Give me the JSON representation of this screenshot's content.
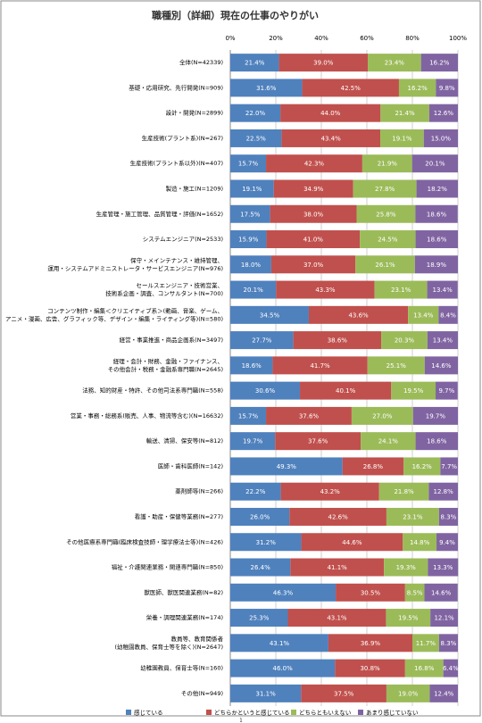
{
  "chart_data": {
    "type": "stacked-bar-horizontal",
    "title": "職種別（詳細）現在の仕事のやりがい",
    "categories": [
      "全体(N=42339)",
      "基礎・応用研究、先行開発(N=909)",
      "設計・開発(N=2899)",
      "生産技術(プラント系)(N=267)",
      "生産技術(プラント系以外)(N=407)",
      "製造・施工(N=1209)",
      "生産管理・施工管理、品質管理・評価(N=1652)",
      "システムエンジニア(N=2533)",
      "保守・メインテナンス・維持管理、\n運用・システムアドミニストレータ・サービスエンジニア(N=976)",
      "セールスエンジニア・技術営業、\n技術系企画・調査、コンサルタント(N=700)",
      "コンテンツ制作・編集＜クリエイティブ系＞(動画、音楽、ゲーム、\nアニメ・漫画、広告、グラフィック等、デザイン・編集・ライティング等)(N=580)",
      "経営・事業推進・商品企画系(N=3497)",
      "経理・会計・財務、金融・ファイナンス、\nその他会計・税務・金融系専門職(N=2645)",
      "法務、知的財産・特許、その他司法系専門職(N=558)",
      "営業・事務・総務系(販売、人事、物流等含む)(N=16632)",
      "輸送、清掃、保安等(N=812)",
      "医師・歯科医師(N=142)",
      "薬剤師等(N=266)",
      "看護・助産・保健等業務(N=277)",
      "その他医療系専門職(臨床検査技師・理学療法士等)(N=426)",
      "福祉・介護関連業務・関連専門職(N=850)",
      "獣医師、獣医関連業務(N=82)",
      "栄養・調理関連業務(N=174)",
      "教員等、教育関係者\n(幼稚園教員、保育士等を除く)(N=2647)",
      "幼稚園教員、保育士等(N=160)",
      "その他(N=949)"
    ],
    "series": [
      {
        "name": "感じている",
        "color": "#4f81bd",
        "values": [
          21.4,
          31.6,
          22.0,
          22.5,
          15.7,
          19.1,
          17.5,
          15.9,
          18.0,
          20.1,
          34.5,
          27.7,
          18.6,
          30.6,
          15.7,
          19.7,
          49.3,
          22.2,
          26.0,
          31.2,
          26.4,
          46.3,
          25.3,
          43.1,
          46.0,
          31.1
        ],
        "value_labels": [
          "21.4%",
          "31.6%",
          "22.0%",
          "22.5%",
          "15.7%",
          "19.1%",
          "17.5%",
          "15.9%",
          "18.0%",
          "20.1%",
          "34.5%",
          "27.7%",
          "18.6%",
          "30.6%",
          "15.7%",
          "19.7%",
          "49.3%",
          "22.2%",
          "26.0%",
          "31.2%",
          "26.4%",
          "46.3%",
          "25.3%",
          "43.1%",
          "46.0%",
          "31.1%"
        ]
      },
      {
        "name": "どちらかというと感じている",
        "color": "#c0504d",
        "values": [
          39.0,
          42.5,
          44.0,
          43.4,
          42.3,
          34.9,
          38.0,
          41.0,
          37.0,
          43.3,
          43.6,
          38.6,
          41.7,
          40.1,
          37.6,
          37.6,
          26.8,
          43.2,
          42.6,
          44.6,
          41.1,
          30.5,
          43.1,
          36.9,
          30.8,
          37.5
        ],
        "value_labels": [
          "39.0%",
          "42.5%",
          "44.0%",
          "43.4%",
          "42.3%",
          "34.9%",
          "38.0%",
          "41.0%",
          "37.0%",
          "43.3%",
          "43.6%",
          "38.6%",
          "41.7%",
          "40.1%",
          "37.6%",
          "37.6%",
          "26.8%",
          "43.2%",
          "42.6%",
          "44.6%",
          "41.1%",
          "30.5%",
          "43.1%",
          "36.9%",
          "30.8%",
          "37.5%"
        ]
      },
      {
        "name": "どちらともいえない",
        "color": "#9bbb59",
        "values": [
          23.4,
          16.2,
          21.4,
          19.1,
          21.9,
          27.8,
          25.8,
          24.5,
          26.1,
          23.1,
          13.4,
          20.3,
          25.1,
          19.5,
          27.0,
          24.1,
          16.2,
          21.8,
          23.1,
          14.8,
          19.3,
          8.5,
          19.5,
          11.7,
          16.8,
          19.0
        ],
        "value_labels": [
          "23.4%",
          "16.2%",
          "21.4%",
          "19.1%",
          "21.9%",
          "27.8%",
          "25.8%",
          "24.5%",
          "26.1%",
          "23.1%",
          "13.4%",
          "20.3%",
          "25.1%",
          "19.5%",
          "27.0%",
          "24.1%",
          "16.2%",
          "21.8%",
          "23.1%",
          "14.8%",
          "19.3%",
          "8.5%",
          "19.5%",
          "11.7%",
          "16.8%",
          "19.0%"
        ]
      },
      {
        "name": "あまり感じていない",
        "color": "#8064a2",
        "values": [
          16.2,
          9.8,
          12.6,
          15.0,
          20.1,
          18.2,
          18.6,
          18.6,
          18.9,
          13.4,
          8.4,
          13.4,
          14.6,
          9.7,
          19.7,
          18.6,
          7.7,
          12.8,
          8.3,
          9.4,
          13.3,
          14.6,
          12.1,
          8.3,
          6.4,
          12.4
        ],
        "value_labels": [
          "16.2%",
          "9.8%",
          "12.6%",
          "15.0%",
          "20.1%",
          "18.2%",
          "18.6%",
          "18.6%",
          "18.9%",
          "13.4%",
          "8.4%",
          "13.4%",
          "14.6%",
          "9.7%",
          "19.7%",
          "18.6%",
          "7.7%",
          "12.8%",
          "8.3%",
          "9.4%",
          "13.3%",
          "14.6%",
          "12.1%",
          "8.3%",
          "6.4%",
          "12.4%"
        ]
      }
    ],
    "xlim": [
      0,
      100
    ],
    "xticks": [
      {
        "value": 0,
        "label": "0%"
      },
      {
        "value": 20,
        "label": "20%"
      },
      {
        "value": 40,
        "label": "40%"
      },
      {
        "value": 60,
        "label": "60%"
      },
      {
        "value": 80,
        "label": "80%"
      },
      {
        "value": 100,
        "label": "100%"
      }
    ],
    "grid": true
  },
  "footer": "1"
}
